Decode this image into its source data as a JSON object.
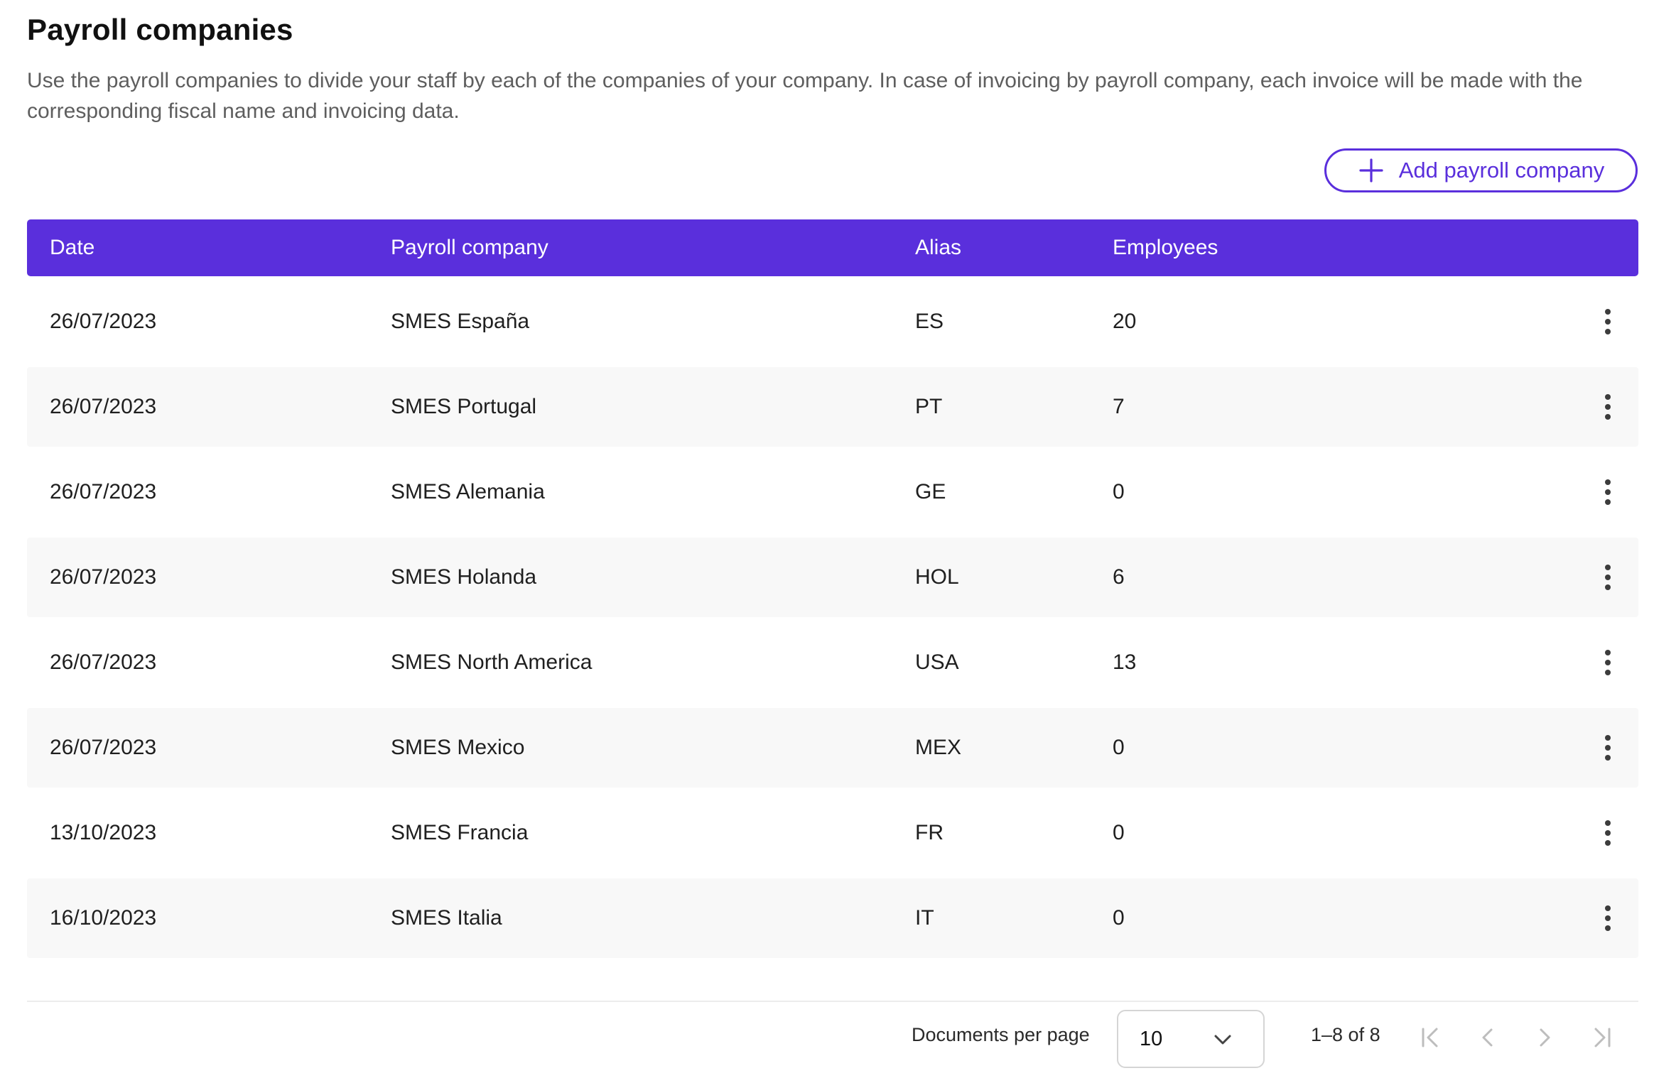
{
  "header": {
    "title": "Payroll companies",
    "description": "Use the payroll companies to divide your staff by each of the companies of your company. In case of invoicing by payroll company, each invoice will be made with the corresponding fiscal name and invoicing data.",
    "add_button_label": "Add payroll company"
  },
  "table": {
    "columns": [
      "Date",
      "Payroll company",
      "Alias",
      "Employees"
    ],
    "rows": [
      {
        "date": "26/07/2023",
        "company": "SMES España",
        "alias": "ES",
        "employees": "20"
      },
      {
        "date": "26/07/2023",
        "company": "SMES Portugal",
        "alias": "PT",
        "employees": "7"
      },
      {
        "date": "26/07/2023",
        "company": "SMES Alemania",
        "alias": "GE",
        "employees": "0"
      },
      {
        "date": "26/07/2023",
        "company": "SMES Holanda",
        "alias": "HOL",
        "employees": "6"
      },
      {
        "date": "26/07/2023",
        "company": "SMES North America",
        "alias": "USA",
        "employees": "13"
      },
      {
        "date": "26/07/2023",
        "company": "SMES Mexico",
        "alias": "MEX",
        "employees": "0"
      },
      {
        "date": "13/10/2023",
        "company": "SMES Francia",
        "alias": "FR",
        "employees": "0"
      },
      {
        "date": "16/10/2023",
        "company": "SMES Italia",
        "alias": "IT",
        "employees": "0"
      }
    ]
  },
  "pagination": {
    "per_page_label": "Documents per page",
    "per_page_value": "10",
    "range_text": "1–8 of 8"
  },
  "icons": {
    "add": "plus-icon",
    "row_menu": "more-vertical-icon",
    "dropdown": "chevron-down-icon",
    "first": "first-page-icon",
    "prev": "chevron-left-icon",
    "next": "chevron-right-icon",
    "last": "last-page-icon"
  },
  "colors": {
    "accent": "#5a2fdc",
    "row_shade": "#f8f8f8",
    "muted_text": "#5e5e5e",
    "disabled_icon": "#bdbdbd"
  }
}
